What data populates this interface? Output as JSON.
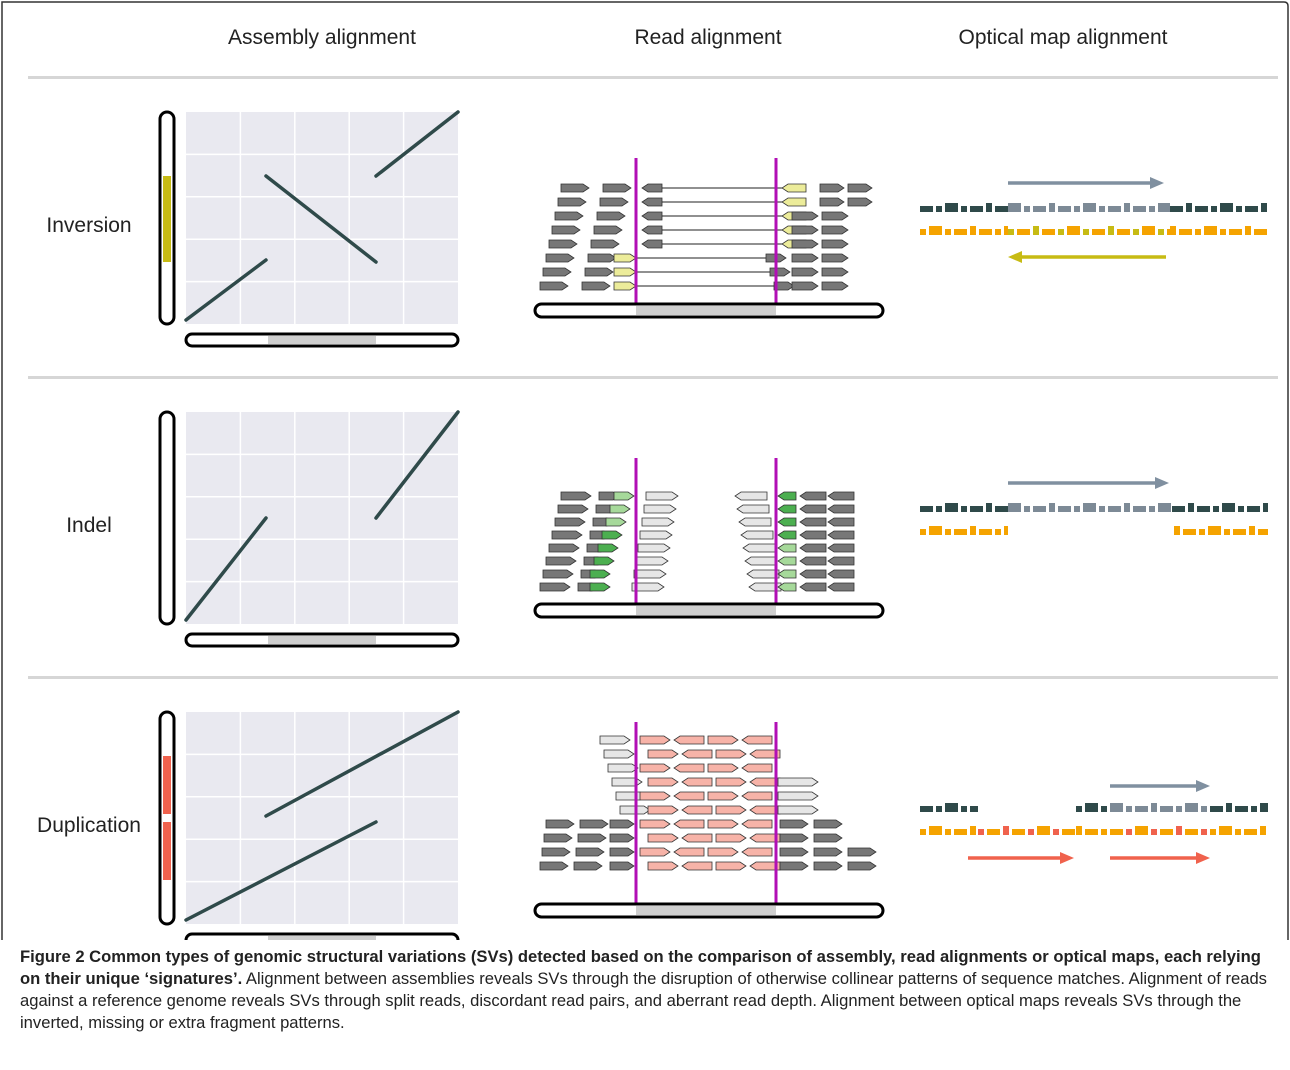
{
  "figure": {
    "columns": [
      "Assembly alignment",
      "Read alignment",
      "Optical map alignment"
    ],
    "rows": [
      {
        "label": "Inversion",
        "variant": "inversion",
        "highlight_color": "#c7bb14",
        "read_color": "#c7bb14",
        "map_color": "#c7bb14"
      },
      {
        "label": "Indel",
        "variant": "indel",
        "highlight_color": "",
        "read_color": "#4caf50",
        "map_color": "#f5a300"
      },
      {
        "label": "Duplication",
        "variant": "duplication",
        "highlight_color": "#f0624d",
        "read_color": "#f0624d",
        "map_color": "#f0624d"
      }
    ],
    "colors": {
      "plot_bg": "#e9e9f0",
      "diagonal": "#2f4a4a",
      "breakpoint": "#b10fb5",
      "map_reference": "#2f4a4a",
      "map_reference_light": "#7d8a96",
      "map_query": "#f5a300",
      "arrow": "#8090a0",
      "read_grey": "#555555"
    }
  },
  "caption": {
    "title": "Figure 2 Common types of genomic structural variations (SVs) detected based on the comparison of assembly, read alignments or optical maps, each relying on their unique ‘signatures’.",
    "body": " Alignment between assemblies reveals SVs through the disruption of otherwise collinear patterns of sequence matches. Alignment of reads against a reference genome reveals SVs through split reads, discordant read pairs, and aberrant read depth. Alignment between optical maps reveals SVs through the inverted, missing or extra fragment patterns."
  }
}
